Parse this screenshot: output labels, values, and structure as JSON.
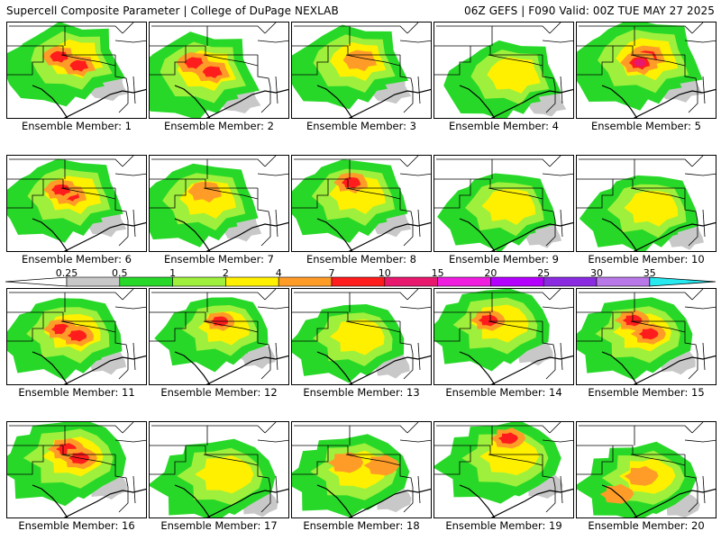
{
  "header": {
    "left": "Supercell Composite Parameter | College of DuPage NEXLAB",
    "right": "06Z GEFS | F090 Valid: 00Z TUE MAY 27 2025"
  },
  "members": [
    {
      "label": "Ensemble Member: 1"
    },
    {
      "label": "Ensemble Member: 2"
    },
    {
      "label": "Ensemble Member: 3"
    },
    {
      "label": "Ensemble Member: 4"
    },
    {
      "label": "Ensemble Member: 5"
    },
    {
      "label": "Ensemble Member: 6"
    },
    {
      "label": "Ensemble Member: 7"
    },
    {
      "label": "Ensemble Member: 8"
    },
    {
      "label": "Ensemble Member: 9"
    },
    {
      "label": "Ensemble Member: 10"
    },
    {
      "label": "Ensemble Member: 11"
    },
    {
      "label": "Ensemble Member: 12"
    },
    {
      "label": "Ensemble Member: 13"
    },
    {
      "label": "Ensemble Member: 14"
    },
    {
      "label": "Ensemble Member: 15"
    },
    {
      "label": "Ensemble Member: 16"
    },
    {
      "label": "Ensemble Member: 17"
    },
    {
      "label": "Ensemble Member: 18"
    },
    {
      "label": "Ensemble Member: 19"
    },
    {
      "label": "Ensemble Member: 20"
    }
  ],
  "colorbar": {
    "levels": [
      "0.25",
      "0.5",
      "1",
      "2",
      "4",
      "7",
      "10",
      "15",
      "20",
      "25",
      "30",
      "35"
    ],
    "colors": [
      "#c8c8c8",
      "#28d828",
      "#9ef03c",
      "#fff000",
      "#ff9c28",
      "#ff1c1c",
      "#e8186e",
      "#f01ce0",
      "#b400ff",
      "#8a2be2",
      "#b878e8",
      "#28e8f0"
    ]
  }
}
